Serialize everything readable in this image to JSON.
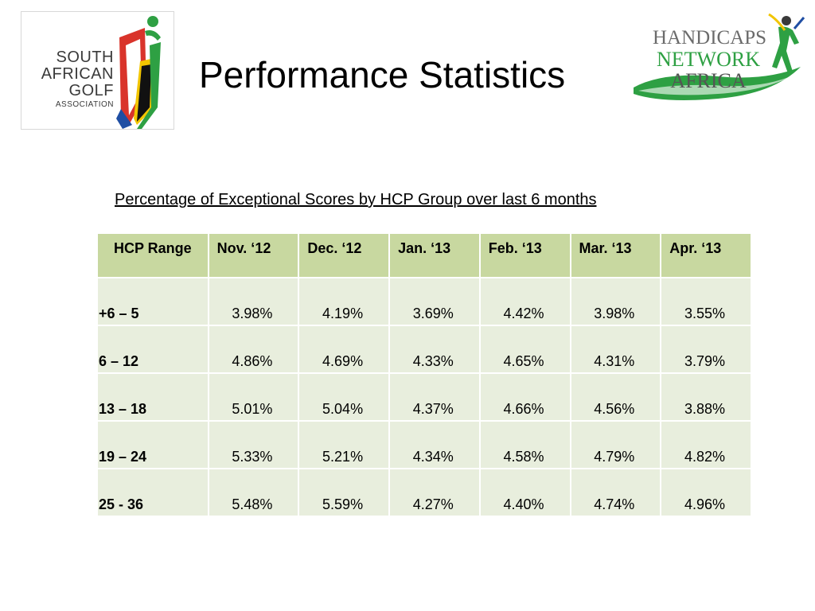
{
  "header": {
    "title": "Performance Statistics",
    "left_logo": {
      "lines": [
        "SOUTH",
        "AFRICAN",
        "GOLF",
        "ASSOCIATION"
      ]
    },
    "right_logo": {
      "lines": [
        "HANDICAPS",
        "NETWORK",
        "AFRICA"
      ]
    }
  },
  "subtitle": "Percentage of Exceptional Scores by HCP Group over last 6 months",
  "table": {
    "columns": [
      "HCP Range",
      "Nov. ‘12",
      "Dec. ‘12",
      "Jan. ‘13",
      "Feb. ‘13",
      "Mar. ‘13",
      "Apr. ‘13"
    ],
    "rows": [
      {
        "range": "+6 – 5",
        "values": [
          "3.98%",
          "4.19%",
          "3.69%",
          "4.42%",
          "3.98%",
          "3.55%"
        ]
      },
      {
        "range": "6 – 12",
        "values": [
          "4.86%",
          "4.69%",
          "4.33%",
          "4.65%",
          "4.31%",
          "3.79%"
        ]
      },
      {
        "range": "13 – 18",
        "values": [
          "5.01%",
          "5.04%",
          "4.37%",
          "4.66%",
          "4.56%",
          "3.88%"
        ]
      },
      {
        "range": "19 – 24",
        "values": [
          "5.33%",
          "5.21%",
          "4.34%",
          "4.58%",
          "4.79%",
          "4.82%"
        ]
      },
      {
        "range": "25 - 36",
        "values": [
          "5.48%",
          "5.59%",
          "4.27%",
          "4.40%",
          "4.74%",
          "4.96%"
        ]
      }
    ]
  },
  "colors": {
    "header_cell": "#c8d8a0",
    "body_cell": "#e8eedd",
    "brand_green": "#2ea043",
    "brand_red": "#d9342b",
    "brand_yellow": "#f2c500",
    "brand_blue": "#1f4ea3"
  }
}
